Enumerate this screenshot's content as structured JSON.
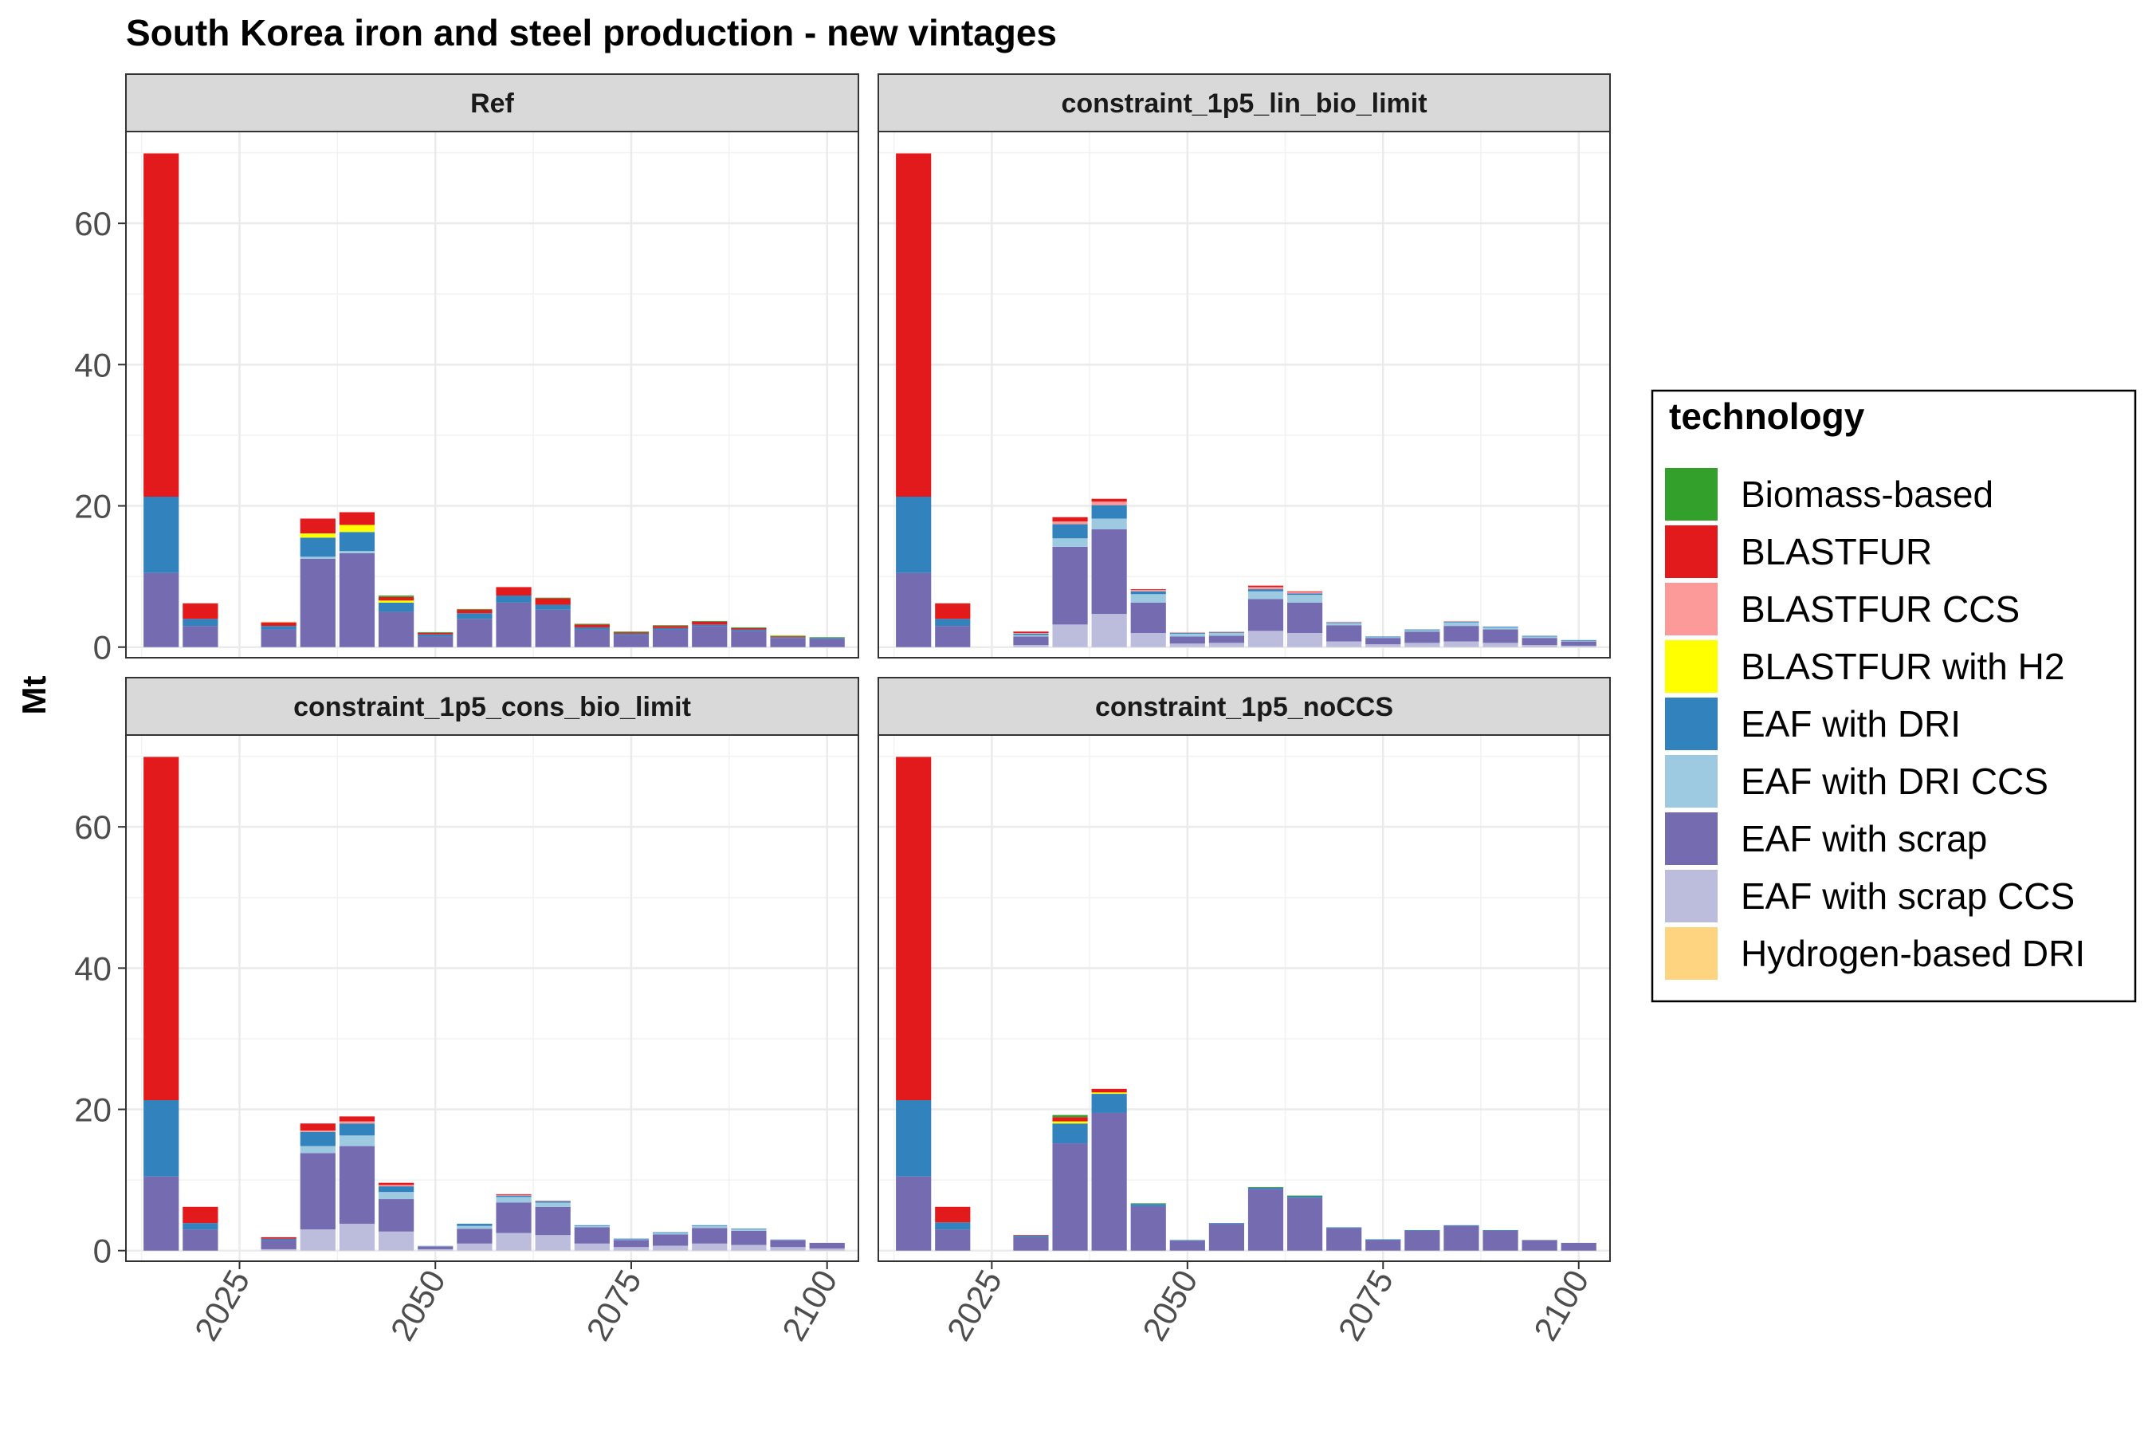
{
  "chart_data": {
    "type": "bar",
    "stacked": true,
    "title": "South Korea iron and steel production - new vintages",
    "ylabel": "Mt",
    "xlabel": "",
    "ylim": [
      -1.5,
      73
    ],
    "xlim": [
      2010.5,
      2104
    ],
    "yticks": [
      0,
      20,
      40,
      60
    ],
    "xticks": [
      2025,
      2050,
      2075,
      2100
    ],
    "grid": true,
    "legend": {
      "title": "technology",
      "placement": "right",
      "entries": [
        "Biomass-based",
        "BLASTFUR",
        "BLASTFUR CCS",
        "BLASTFUR with H2",
        "EAF with DRI",
        "EAF with DRI CCS",
        "EAF with scrap",
        "EAF with scrap CCS",
        "Hydrogen-based DRI"
      ]
    },
    "technologies": [
      {
        "name": "Biomass-based",
        "color": "#33a02c"
      },
      {
        "name": "BLASTFUR",
        "color": "#e31a1c"
      },
      {
        "name": "BLASTFUR CCS",
        "color": "#fb9a99"
      },
      {
        "name": "BLASTFUR with H2",
        "color": "#ffff00"
      },
      {
        "name": "EAF with DRI",
        "color": "#3182bd"
      },
      {
        "name": "EAF with DRI CCS",
        "color": "#9ecae1"
      },
      {
        "name": "EAF with scrap",
        "color": "#756bb1"
      },
      {
        "name": "EAF with scrap CCS",
        "color": "#bcbddc"
      },
      {
        "name": "Hydrogen-based DRI",
        "color": "#fed480"
      }
    ],
    "stack_order_bottom_to_top": [
      "EAF with scrap CCS",
      "EAF with scrap",
      "EAF with DRI CCS",
      "EAF with DRI",
      "BLASTFUR with H2",
      "BLASTFUR CCS",
      "BLASTFUR",
      "Biomass-based",
      "Hydrogen-based DRI"
    ],
    "x": [
      2015,
      2020,
      2025,
      2030,
      2035,
      2040,
      2045,
      2050,
      2055,
      2060,
      2065,
      2070,
      2075,
      2080,
      2085,
      2090,
      2095,
      2100
    ],
    "panels": [
      {
        "name": "Ref",
        "series": [
          {
            "name": "EAF with scrap",
            "values": [
              10.5,
              3.0,
              0,
              2.5,
              12.5,
              13.3,
              5.0,
              1.5,
              4.0,
              6.3,
              5.3,
              2.5,
              1.7,
              2.5,
              3.0,
              2.3,
              1.3,
              1.2
            ]
          },
          {
            "name": "EAF with DRI CCS",
            "values": [
              0,
              0,
              0,
              0,
              0.3,
              0.3,
              0,
              0,
              0,
              0,
              0,
              0,
              0,
              0,
              0,
              0,
              0,
              0
            ]
          },
          {
            "name": "EAF with DRI",
            "values": [
              10.8,
              1.0,
              0,
              0.5,
              2.7,
              2.7,
              1.3,
              0.3,
              0.8,
              1.0,
              0.7,
              0.3,
              0.2,
              0.2,
              0.2,
              0.2,
              0.1,
              0.1
            ]
          },
          {
            "name": "BLASTFUR with H2",
            "values": [
              0,
              0,
              0,
              0,
              0.6,
              1.0,
              0.3,
              0,
              0,
              0,
              0,
              0,
              0,
              0,
              0,
              0,
              0,
              0
            ]
          },
          {
            "name": "BLASTFUR",
            "values": [
              48.6,
              2.2,
              0,
              0.5,
              2.1,
              1.8,
              0.5,
              0.2,
              0.5,
              1.2,
              0.9,
              0.4,
              0.2,
              0.3,
              0.4,
              0.2,
              0.1,
              0
            ]
          },
          {
            "name": "Biomass-based",
            "values": [
              0,
              0,
              0,
              0,
              0,
              0,
              0.2,
              0.1,
              0.1,
              0,
              0.1,
              0.1,
              0.1,
              0.1,
              0.1,
              0.1,
              0.1,
              0.1
            ]
          },
          {
            "name": "Hydrogen-based DRI",
            "values": [
              0,
              0,
              0,
              0.1,
              0,
              0,
              0,
              0,
              0,
              0,
              0,
              0,
              0,
              0,
              0,
              0,
              0.1,
              0
            ]
          }
        ]
      },
      {
        "name": "constraint_1p5_lin_bio_limit",
        "series": [
          {
            "name": "EAF with scrap CCS",
            "values": [
              0,
              0,
              0,
              0.3,
              3.2,
              4.7,
              2.0,
              0.5,
              0.6,
              2.3,
              2.0,
              0.8,
              0.4,
              0.6,
              0.8,
              0.6,
              0.3,
              0.2
            ]
          },
          {
            "name": "EAF with scrap",
            "values": [
              10.5,
              3.0,
              0,
              1.2,
              11.0,
              12.0,
              4.3,
              1.0,
              1.0,
              4.5,
              4.3,
              2.3,
              0.9,
              1.6,
              2.2,
              1.9,
              1.0,
              0.6
            ]
          },
          {
            "name": "EAF with DRI CCS",
            "values": [
              0,
              0,
              0,
              0.2,
              1.2,
              1.5,
              1.2,
              0.4,
              0.4,
              1.1,
              1.1,
              0.3,
              0.1,
              0.2,
              0.5,
              0.3,
              0.2,
              0.1
            ]
          },
          {
            "name": "EAF with DRI",
            "values": [
              10.8,
              1.0,
              0,
              0.2,
              2.0,
              1.9,
              0.4,
              0.1,
              0.1,
              0.3,
              0.2,
              0.1,
              0.1,
              0.1,
              0.1,
              0.1,
              0.1,
              0.1
            ]
          },
          {
            "name": "BLASTFUR CCS",
            "values": [
              0,
              0,
              0,
              0.1,
              0.4,
              0.5,
              0.2,
              0.1,
              0.1,
              0.3,
              0.2,
              0.1,
              0,
              0,
              0.1,
              0,
              0,
              0
            ]
          },
          {
            "name": "BLASTFUR",
            "values": [
              48.6,
              2.2,
              0,
              0.2,
              0.6,
              0.4,
              0.1,
              0,
              0,
              0.2,
              0.1,
              0,
              0,
              0,
              0,
              0,
              0,
              0
            ]
          }
        ]
      },
      {
        "name": "constraint_1p5_cons_bio_limit",
        "series": [
          {
            "name": "EAF with scrap CCS",
            "values": [
              0,
              0,
              0,
              0.2,
              3.0,
              3.8,
              2.7,
              0.2,
              1.0,
              2.5,
              2.2,
              1.0,
              0.5,
              0.7,
              1.0,
              0.8,
              0.5,
              0.3
            ]
          },
          {
            "name": "EAF with scrap",
            "values": [
              10.5,
              3.0,
              0,
              1.3,
              10.8,
              11.0,
              4.6,
              0.4,
              2.1,
              4.3,
              4.0,
              2.3,
              1.0,
              1.6,
              2.2,
              2.0,
              1.0,
              0.8
            ]
          },
          {
            "name": "EAF with DRI CCS",
            "values": [
              0,
              0,
              0,
              0,
              1.0,
              1.5,
              1.0,
              0.1,
              0.4,
              0.8,
              0.6,
              0.2,
              0.1,
              0.2,
              0.3,
              0.2,
              0.1,
              0
            ]
          },
          {
            "name": "EAF with DRI",
            "values": [
              10.8,
              0.9,
              0,
              0.2,
              2.0,
              1.7,
              0.8,
              0,
              0.3,
              0.2,
              0.2,
              0.1,
              0.1,
              0.1,
              0.1,
              0.1,
              0,
              0
            ]
          },
          {
            "name": "BLASTFUR CCS",
            "values": [
              0,
              0,
              0,
              0,
              0.2,
              0.3,
              0.2,
              0,
              0,
              0.1,
              0.1,
              0,
              0,
              0,
              0,
              0,
              0,
              0
            ]
          },
          {
            "name": "BLASTFUR",
            "values": [
              48.6,
              2.3,
              0,
              0.2,
              1.0,
              0.7,
              0.3,
              0,
              0,
              0.1,
              0,
              0,
              0,
              0,
              0,
              0,
              0,
              0
            ]
          }
        ]
      },
      {
        "name": "constraint_1p5_noCCS",
        "series": [
          {
            "name": "EAF with scrap",
            "values": [
              10.5,
              3.0,
              0,
              1.9,
              15.2,
              19.5,
              6.3,
              1.4,
              3.8,
              8.7,
              7.5,
              3.2,
              1.5,
              2.8,
              3.5,
              2.8,
              1.5,
              1.1
            ]
          },
          {
            "name": "EAF with DRI",
            "values": [
              10.8,
              1.0,
              0,
              0.2,
              2.8,
              2.7,
              0.3,
              0.1,
              0.1,
              0.2,
              0.2,
              0.1,
              0.1,
              0.1,
              0.1,
              0.1,
              0,
              0
            ]
          },
          {
            "name": "BLASTFUR with H2",
            "values": [
              0,
              0,
              0,
              0,
              0.3,
              0.2,
              0,
              0,
              0,
              0,
              0,
              0,
              0,
              0,
              0,
              0,
              0,
              0
            ]
          },
          {
            "name": "BLASTFUR",
            "values": [
              48.6,
              2.2,
              0,
              0.1,
              0.6,
              0.5,
              0,
              0,
              0,
              0,
              0,
              0,
              0,
              0,
              0,
              0,
              0,
              0
            ]
          },
          {
            "name": "Biomass-based",
            "values": [
              0,
              0,
              0,
              0,
              0.3,
              0,
              0.1,
              0,
              0,
              0.1,
              0.1,
              0,
              0,
              0,
              0,
              0,
              0,
              0
            ]
          }
        ]
      }
    ]
  }
}
